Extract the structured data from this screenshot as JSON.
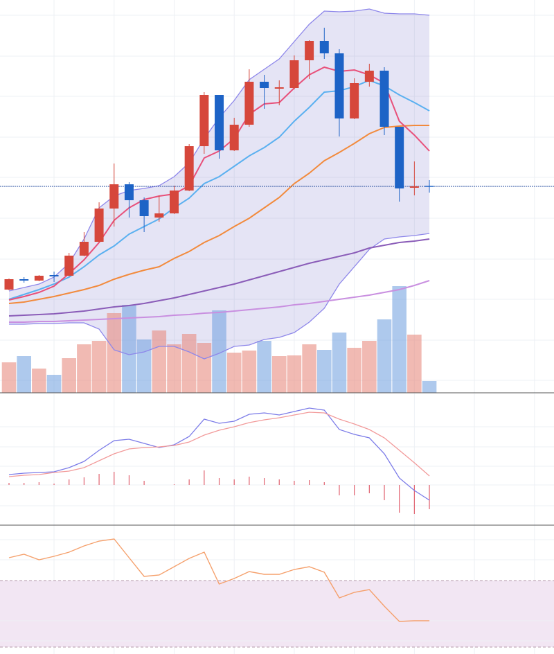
{
  "chart_data": [
    {
      "type": "candlestick",
      "x": [
        0,
        1,
        2,
        3,
        4,
        5,
        6,
        7,
        8,
        9,
        10,
        11,
        12,
        13,
        14,
        15,
        16,
        17,
        18,
        19,
        20,
        21,
        22,
        23,
        24,
        25,
        26,
        27,
        28
      ],
      "open": [
        182,
        197,
        195,
        203,
        202,
        231,
        251,
        299,
        334,
        311,
        286,
        292,
        325,
        389,
        463,
        383,
        420,
        482,
        472,
        473,
        513,
        541,
        523,
        429,
        482,
        498,
        417,
        329,
        331
      ],
      "high": [
        198,
        200,
        203,
        208,
        235,
        265,
        308,
        364,
        337,
        315,
        318,
        332,
        392,
        467,
        463,
        430,
        500,
        492,
        484,
        520,
        542,
        560,
        529,
        487,
        508,
        503,
        417,
        367,
        340
      ],
      "low": [
        181,
        192,
        194,
        193,
        201,
        230,
        250,
        273,
        286,
        265,
        280,
        291,
        324,
        378,
        371,
        382,
        417,
        443,
        448,
        471,
        486,
        515,
        403,
        428,
        475,
        405,
        309,
        318,
        322
      ],
      "close": [
        197,
        195,
        202,
        201,
        231,
        251,
        299,
        334,
        311,
        288,
        292,
        325,
        389,
        463,
        383,
        420,
        482,
        473,
        474,
        513,
        541,
        523,
        429,
        480,
        498,
        417,
        328,
        331,
        331
      ],
      "up_color": "#d6473b",
      "down_color": "#1d63c6",
      "xlim": [
        -0.6,
        36.3
      ],
      "xticks": [
        3,
        7,
        11,
        15,
        19,
        23,
        27,
        31,
        35
      ],
      "ylim": [
        33,
        600
      ],
      "yticks": [
        578,
        519,
        461,
        402,
        344,
        285,
        226,
        168,
        109,
        51
      ],
      "grid": true,
      "price_line_color": "#2a4fa0",
      "bands": {
        "color": "#8d86ea",
        "fill": "rgba(125,120,205,0.2)",
        "upper": [
          180,
          185,
          190,
          200,
          220,
          255,
          300,
          317,
          325,
          328,
          332,
          345,
          365,
          400,
          430,
          455,
          485,
          500,
          515,
          540,
          565,
          584,
          583,
          584,
          587,
          581,
          580,
          580,
          578
        ],
        "lower": [
          132,
          132,
          133,
          133,
          134,
          134,
          125,
          95,
          88,
          92,
          100,
          100,
          92,
          82,
          90,
          100,
          102,
          110,
          113,
          120,
          135,
          155,
          190,
          215,
          240,
          255,
          258,
          260,
          263
        ]
      },
      "series": [
        {
          "color": "#c98fe0",
          "values": [
            135,
            135,
            136,
            136,
            137,
            138,
            139,
            140,
            141,
            142,
            143,
            145,
            146,
            148,
            149,
            151,
            153,
            155,
            157,
            160,
            162,
            165,
            168,
            171,
            174,
            178,
            182,
            188,
            195
          ]
        },
        {
          "color": "#8a5cb8",
          "values": [
            144,
            145,
            146,
            147,
            149,
            151,
            154,
            157,
            159,
            162,
            166,
            170,
            175,
            180,
            185,
            190,
            196,
            202,
            208,
            214,
            220,
            225,
            230,
            235,
            242,
            246,
            250,
            252,
            255
          ]
        },
        {
          "color": "#f28a3c",
          "values": [
            162,
            164,
            168,
            172,
            177,
            182,
            188,
            197,
            204,
            210,
            215,
            227,
            237,
            250,
            260,
            273,
            285,
            300,
            315,
            335,
            350,
            368,
            380,
            393,
            407,
            416,
            418,
            419,
            419
          ]
        },
        {
          "color": "#5ab0f0",
          "values": [
            168,
            175,
            182,
            190,
            200,
            215,
            232,
            245,
            262,
            273,
            284,
            300,
            314,
            335,
            345,
            360,
            375,
            387,
            402,
            425,
            445,
            467,
            469,
            475,
            484,
            476,
            463,
            452,
            440
          ]
        },
        {
          "color": "#e8507a",
          "values": [
            167,
            172,
            178,
            187,
            205,
            225,
            250,
            282,
            300,
            312,
            317,
            320,
            332,
            372,
            382,
            400,
            435,
            450,
            452,
            473,
            492,
            503,
            497,
            499,
            492,
            480,
            425,
            405,
            382
          ]
        }
      ]
    },
    {
      "type": "bar",
      "x": [
        0,
        1,
        2,
        3,
        4,
        5,
        6,
        7,
        8,
        9,
        10,
        11,
        12,
        13,
        14,
        15,
        16,
        17,
        18,
        19,
        20,
        21,
        22,
        23,
        24,
        25,
        26,
        27,
        28
      ],
      "values": [
        44,
        53,
        35,
        26,
        50,
        70,
        75,
        115,
        127,
        77,
        90,
        70,
        85,
        72,
        119,
        58,
        61,
        75,
        53,
        54,
        70,
        62,
        87,
        65,
        75,
        106,
        154,
        84,
        17
      ],
      "up_color": "rgba(232,140,128,0.6)",
      "down_color": "rgba(120,165,225,0.6)",
      "xlim": [
        -0.6,
        36.3
      ],
      "ylim": [
        0,
        567
      ]
    },
    {
      "type": "macd",
      "x": [
        0,
        1,
        2,
        3,
        4,
        5,
        6,
        7,
        8,
        9,
        10,
        11,
        12,
        13,
        14,
        15,
        16,
        17,
        18,
        19,
        20,
        21,
        22,
        23,
        24,
        25,
        26,
        27,
        28
      ],
      "xlim": [
        -0.6,
        36.3
      ],
      "ylim": [
        -58,
        132
      ],
      "yticks": [
        84,
        55,
        27,
        0,
        -30
      ],
      "grid": true,
      "series": [
        {
          "color": "#7b7be8",
          "values": [
            15,
            17,
            18,
            19,
            25,
            34,
            50,
            64,
            66,
            60,
            54,
            58,
            70,
            95,
            89,
            92,
            102,
            104,
            101,
            106,
            111,
            108,
            80,
            73,
            68,
            45,
            10,
            -8,
            -22
          ]
        },
        {
          "color": "#f29a9a",
          "values": [
            12,
            14,
            15,
            18,
            20,
            25,
            35,
            45,
            52,
            54,
            55,
            57,
            62,
            72,
            79,
            84,
            90,
            94,
            97,
            101,
            105,
            104,
            95,
            88,
            80,
            68,
            50,
            32,
            13
          ]
        }
      ],
      "histogram": {
        "color": "#e0606e",
        "values": [
          3,
          3,
          4,
          2,
          8,
          11,
          16,
          19,
          14,
          6,
          0,
          1,
          8,
          21,
          10,
          8,
          12,
          10,
          8,
          6,
          7,
          4,
          -15,
          -15,
          -12,
          -22,
          -40,
          -42,
          -35
        ]
      }
    },
    {
      "type": "line",
      "x": [
        0,
        1,
        2,
        3,
        4,
        5,
        6,
        7,
        8,
        9,
        10,
        11,
        12,
        13,
        14,
        15,
        16,
        17,
        18,
        19,
        20,
        21,
        22,
        23,
        24,
        25,
        26,
        27,
        28
      ],
      "xlim": [
        -0.6,
        36.3
      ],
      "ylim": [
        0,
        186
      ],
      "yticks": [
        165,
        136,
        48,
        19
      ],
      "grid": true,
      "band": {
        "range": [
          10,
          106
        ],
        "fill": "#f2e6f3",
        "color": "#b49aa8"
      },
      "series": [
        {
          "color": "#f5a06c",
          "values": [
            139,
            144,
            136,
            141,
            147,
            156,
            163,
            166,
            139,
            112,
            114,
            126,
            138,
            147,
            101,
            109,
            119,
            115,
            115,
            122,
            126,
            118,
            81,
            89,
            93,
            69,
            47,
            48,
            48
          ]
        }
      ]
    }
  ]
}
